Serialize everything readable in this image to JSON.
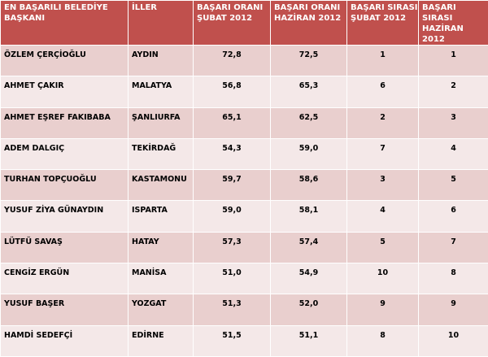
{
  "table": {
    "headers": [
      "EN BAŞARILI BELEDİYE BAŞKANI",
      "İLLER",
      "BAŞARI ORANI ŞUBAT 2012",
      "BAŞARI ORANI HAZİRAN 2012",
      "BAŞARI SIRASI ŞUBAT 2012",
      "BAŞARI SIRASI HAZİRAN 2012"
    ],
    "rows": [
      [
        "ÖZLEM ÇERÇİOĞLU",
        "AYDIN",
        "72,8",
        "72,5",
        "1",
        "1"
      ],
      [
        "AHMET ÇAKIR",
        "MALATYA",
        "56,8",
        "65,3",
        "6",
        "2"
      ],
      [
        "AHMET EŞREF FAKIBABA",
        "ŞANLIURFA",
        "65,1",
        "62,5",
        "2",
        "3"
      ],
      [
        "ADEM DALGIÇ",
        "TEKİRDAĞ",
        "54,3",
        "59,0",
        "7",
        "4"
      ],
      [
        "TURHAN TOPÇUOĞLU",
        "KASTAMONU",
        "59,7",
        "58,6",
        "3",
        "5"
      ],
      [
        "YUSUF ZİYA GÜNAYDIN",
        "ISPARTA",
        "59,0",
        "58,1",
        "4",
        "6"
      ],
      [
        "LÜTFÜ SAVAŞ",
        "HATAY",
        "57,3",
        "57,4",
        "5",
        "7"
      ],
      [
        "CENGİZ ERGÜN",
        "MANİSA",
        "51,0",
        "54,9",
        "10",
        "8"
      ],
      [
        "YUSUF BAŞER",
        "YOZGAT",
        "51,3",
        "52,0",
        "9",
        "9"
      ],
      [
        "HAMDİ SEDEFÇİ",
        "EDİRNE",
        "51,5",
        "51,1",
        "8",
        "10"
      ]
    ]
  },
  "colors": {
    "header_bg": "#c0504d",
    "row_dark": "#e9cfce",
    "row_light": "#f4e8e8"
  }
}
